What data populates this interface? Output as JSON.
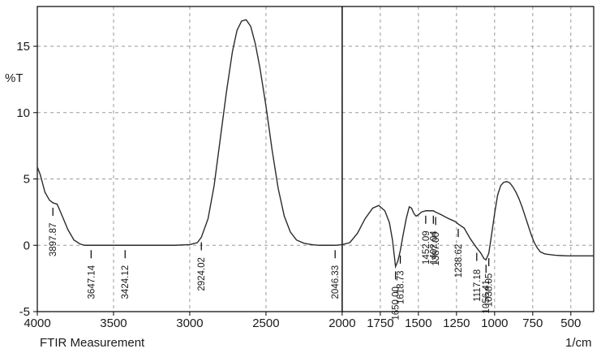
{
  "chart_data": {
    "type": "line",
    "title": "",
    "xlabel": "1/cm",
    "ylabel": "%T",
    "footer_label": "FTIR Measurement",
    "x_reversed": true,
    "xlim": [
      4000,
      350
    ],
    "ylim": [
      -5,
      18
    ],
    "grid": true,
    "x_ticks": [
      4000,
      3500,
      3000,
      2500,
      2000,
      1750,
      1500,
      1250,
      1000,
      750,
      500
    ],
    "x_tick_labels": [
      "4000",
      "3500",
      "3000",
      "2500",
      "2000",
      "1750",
      "1500",
      "1250",
      "1000",
      "750",
      "500"
    ],
    "y_ticks": [
      -5,
      0,
      5,
      10,
      15
    ],
    "y_tick_labels": [
      "-5",
      "0",
      "5",
      "10",
      "15"
    ],
    "cursor_x": 2000,
    "series": [
      {
        "x": [
          4000,
          3980,
          3950,
          3920,
          3897.87,
          3870,
          3840,
          3800,
          3760,
          3720,
          3690,
          3670,
          3647.14,
          3600,
          3500,
          3424.12,
          3300,
          3100,
          3000,
          2950,
          2924.02,
          2880,
          2840,
          2800,
          2760,
          2720,
          2690,
          2660,
          2630,
          2600,
          2570,
          2540,
          2500,
          2460,
          2420,
          2380,
          2340,
          2300,
          2250,
          2200,
          2150,
          2100,
          2046.33,
          2000,
          1950,
          1900,
          1850,
          1800,
          1760,
          1720,
          1690,
          1670,
          1650,
          1635,
          1618.73,
          1600,
          1580,
          1560,
          1545,
          1530,
          1515,
          1500,
          1480,
          1452.09,
          1420,
          1402.04,
          1387,
          1350,
          1300,
          1260,
          1238.62,
          1200,
          1160,
          1117.18,
          1090,
          1070,
          1056.41,
          1038.05,
          1020,
          1000,
          980,
          960,
          940,
          920,
          900,
          880,
          860,
          840,
          820,
          800,
          780,
          760,
          740,
          720,
          700,
          670,
          640,
          600,
          560,
          520,
          480,
          440,
          400,
          350
        ],
        "y": [
          5.9,
          5.3,
          4.0,
          3.4,
          3.2,
          3.1,
          2.3,
          1.2,
          0.4,
          0.1,
          0.0,
          0.0,
          0.0,
          0.0,
          0.0,
          0.0,
          0.0,
          0.0,
          0.05,
          0.2,
          0.6,
          2.0,
          4.5,
          8.0,
          11.5,
          14.6,
          16.2,
          16.9,
          17.0,
          16.5,
          15.2,
          13.4,
          10.5,
          7.2,
          4.3,
          2.2,
          1.0,
          0.4,
          0.15,
          0.05,
          0.0,
          0.0,
          0.0,
          0.05,
          0.2,
          0.9,
          2.0,
          2.8,
          3.0,
          2.6,
          1.7,
          0.4,
          -1.6,
          -1.2,
          -0.4,
          0.8,
          2.0,
          2.9,
          2.8,
          2.4,
          2.2,
          2.3,
          2.5,
          2.6,
          2.6,
          2.6,
          2.5,
          2.3,
          2.0,
          1.8,
          1.6,
          1.3,
          0.5,
          -0.2,
          -0.6,
          -1.0,
          -1.1,
          -0.6,
          0.8,
          2.4,
          3.8,
          4.5,
          4.75,
          4.8,
          4.7,
          4.4,
          4.0,
          3.5,
          2.9,
          2.2,
          1.5,
          0.8,
          0.2,
          -0.2,
          -0.5,
          -0.65,
          -0.7,
          -0.75,
          -0.78,
          -0.8,
          -0.8,
          -0.8,
          -0.8,
          -0.8
        ]
      }
    ],
    "peak_labels": [
      {
        "label": "3897.87",
        "x": 3897.87,
        "anchor_y": 3.2,
        "side": "below"
      },
      {
        "label": "3647.14",
        "x": 3647.14,
        "anchor_y": 0.0,
        "side": "below"
      },
      {
        "label": "3424.12",
        "x": 3424.12,
        "anchor_y": 0.0,
        "side": "below"
      },
      {
        "label": "2924.02",
        "x": 2924.02,
        "anchor_y": 0.6,
        "side": "below"
      },
      {
        "label": "2046.33",
        "x": 2046.33,
        "anchor_y": 0.0,
        "side": "below"
      },
      {
        "label": "1650.00",
        "x": 1650.0,
        "anchor_y": -1.6,
        "side": "below"
      },
      {
        "label": "1618.73",
        "x": 1618.73,
        "anchor_y": -0.4,
        "side": "below"
      },
      {
        "label": "1452.09",
        "x": 1452.09,
        "anchor_y": 2.6,
        "side": "below"
      },
      {
        "label": "1402.04",
        "x": 1402.04,
        "anchor_y": 2.6,
        "side": "below"
      },
      {
        "label": "1387.00",
        "x": 1387.0,
        "anchor_y": 2.5,
        "side": "below"
      },
      {
        "label": "1238.62",
        "x": 1238.62,
        "anchor_y": 1.6,
        "side": "below"
      },
      {
        "label": "1117.18",
        "x": 1117.18,
        "anchor_y": -0.2,
        "side": "below"
      },
      {
        "label": "1056.41",
        "x": 1056.41,
        "anchor_y": -1.1,
        "side": "below"
      },
      {
        "label": "1038.05",
        "x": 1038.05,
        "anchor_y": -0.6,
        "side": "below"
      }
    ]
  }
}
